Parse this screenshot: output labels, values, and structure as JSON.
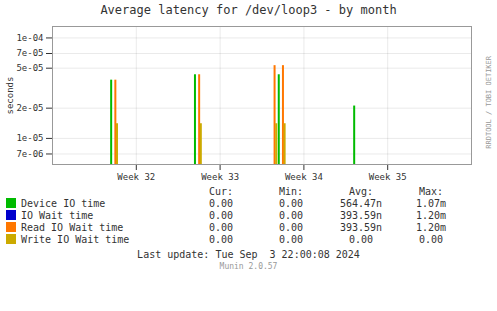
{
  "chart_data": {
    "type": "bar",
    "title": "Average latency for /dev/loop3 - by month",
    "ylabel": "seconds",
    "log": "y",
    "grid": true,
    "legend": "bottom",
    "xlim": [
      0.5,
      5.5
    ],
    "xticks": [
      {
        "value": 1.5,
        "label": "Week 32"
      },
      {
        "value": 2.5,
        "label": "Week 33"
      },
      {
        "value": 3.5,
        "label": "Week 34"
      },
      {
        "value": 4.5,
        "label": "Week 35"
      }
    ],
    "ylim": [
      5.5e-06,
      0.00013
    ],
    "yticks": [
      {
        "value": 7e-06,
        "label": "7e-06"
      },
      {
        "value": 1e-05,
        "label": "1e-05"
      },
      {
        "value": 2e-05,
        "label": "2e-05"
      },
      {
        "value": 5e-05,
        "label": "5e-05"
      },
      {
        "value": 7e-05,
        "label": "7e-05"
      },
      {
        "value": 0.0001,
        "label": "1e-04"
      }
    ],
    "series": [
      {
        "name": "Device IO time",
        "color": "#00bb00",
        "x": [
          1.2,
          2.2,
          3.2,
          4.1
        ],
        "values": [
          3.8e-05,
          4.3e-05,
          4.3e-05,
          2.1e-05
        ]
      },
      {
        "name": "IO Wait time",
        "color": "#0000cc",
        "x": [],
        "values": []
      },
      {
        "name": "Read IO Wait time",
        "color": "#ff7700",
        "x": [
          1.25,
          2.25,
          3.15,
          3.25
        ],
        "values": [
          3.8e-05,
          4.3e-05,
          5.3e-05,
          5.3e-05
        ]
      },
      {
        "name": "Write IO Wait time",
        "color": "#ccaa00",
        "x": [
          1.27,
          2.27,
          3.17,
          3.27
        ],
        "values": [
          1.4e-05,
          1.4e-05,
          1.4e-05,
          1.4e-05
        ]
      }
    ],
    "table": {
      "headers": [
        "Cur:",
        "Min:",
        "Avg:",
        "Max:"
      ],
      "rows": [
        [
          "0.00",
          "0.00",
          "564.47n",
          "1.07m"
        ],
        [
          "0.00",
          "0.00",
          "393.59n",
          "1.20m"
        ],
        [
          "0.00",
          "0.00",
          "393.59n",
          "1.20m"
        ],
        [
          "0.00",
          "0.00",
          "0.00",
          "0.00"
        ]
      ]
    },
    "annotations": [
      "Last update: Tue Sep  3 22:00:08 2024",
      "Munin 2.0.57",
      "RRDTOOL / TOBI OETIKER"
    ]
  }
}
